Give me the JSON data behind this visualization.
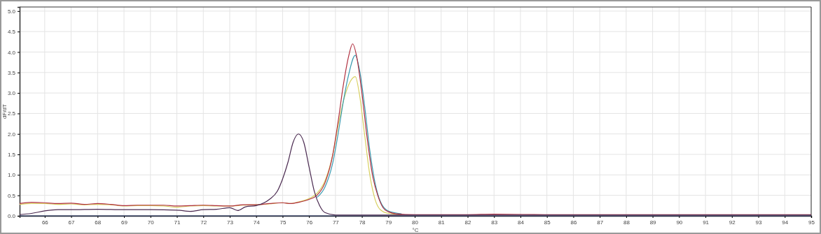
{
  "chart_data": {
    "type": "line",
    "xlabel": "°C",
    "ylabel": "dF/dT",
    "xlim": [
      65.05,
      95
    ],
    "xticks": [
      66,
      67,
      68,
      69,
      70,
      71,
      72,
      73,
      74,
      75,
      76,
      77,
      78,
      79,
      80,
      81,
      82,
      83,
      84,
      85,
      86,
      87,
      88,
      89,
      90,
      91,
      92,
      93,
      94,
      95
    ],
    "ylim": [
      0,
      5.1
    ],
    "yticks": [
      {
        "value": 0,
        "label": "0.0"
      },
      {
        "value": 0.5,
        "label": "0.5"
      },
      {
        "value": 1,
        "label": "1.0"
      },
      {
        "value": 1.5,
        "label": "1.5"
      },
      {
        "value": 2,
        "label": "2.0"
      },
      {
        "value": 2.5,
        "label": "2.5"
      },
      {
        "value": 3,
        "label": "3.0"
      },
      {
        "value": 3.5,
        "label": "3.5"
      },
      {
        "value": 4,
        "label": "4.0"
      },
      {
        "value": 4.5,
        "label": "4.5"
      },
      {
        "value": 5,
        "label": "5.0"
      }
    ],
    "grid": true,
    "marker": "none",
    "line_style": "solid",
    "series": [
      {
        "color": "#203060",
        "x": [
          65.05,
          70,
          75,
          80,
          85,
          90,
          95
        ],
        "values": [
          0,
          0,
          0,
          0,
          0,
          0,
          0
        ]
      },
      {
        "color": "#d8d060",
        "x": [
          65.05,
          65.5,
          66,
          66.5,
          67,
          67.5,
          68,
          68.5,
          69,
          69.5,
          70,
          70.5,
          71,
          71.5,
          72,
          72.5,
          73,
          73.5,
          74,
          74.5,
          75,
          75.3,
          75.6,
          76,
          76.3,
          76.6,
          76.9,
          77.1,
          77.3,
          77.5,
          77.75,
          77.9,
          78.1,
          78.3,
          78.5,
          78.7,
          79,
          79.5
        ],
        "values": [
          0.28,
          0.3,
          0.3,
          0.28,
          0.29,
          0.27,
          0.28,
          0.27,
          0.24,
          0.25,
          0.25,
          0.24,
          0.21,
          0.24,
          0.25,
          0.24,
          0.24,
          0.26,
          0.27,
          0.29,
          0.32,
          0.3,
          0.34,
          0.42,
          0.55,
          0.85,
          1.5,
          2.2,
          2.8,
          3.2,
          3.4,
          3.0,
          2.0,
          1.0,
          0.4,
          0.15,
          0.06,
          0.03
        ]
      },
      {
        "color": "#3a9ab0",
        "x": [
          76.3,
          76.6,
          76.9,
          77.1,
          77.3,
          77.5,
          77.75,
          77.9,
          78.1,
          78.3,
          78.5,
          78.7,
          79,
          79.5
        ],
        "values": [
          0.45,
          0.7,
          1.3,
          2.0,
          2.8,
          3.45,
          3.92,
          3.6,
          2.7,
          1.6,
          0.8,
          0.35,
          0.12,
          0.05
        ]
      },
      {
        "color": "#b03040",
        "x": [
          65.05,
          65.5,
          66,
          66.5,
          67,
          67.5,
          68,
          68.5,
          69,
          69.5,
          70,
          70.5,
          71,
          71.5,
          72,
          72.5,
          73,
          73.5,
          74,
          74.5,
          75,
          75.3,
          75.6,
          76,
          76.3,
          76.6,
          76.9,
          77.1,
          77.3,
          77.5,
          77.65,
          77.8,
          78,
          78.2,
          78.4,
          78.6,
          78.8,
          79,
          79.3,
          80,
          82,
          83,
          85,
          95
        ],
        "values": [
          0.3,
          0.33,
          0.32,
          0.3,
          0.31,
          0.28,
          0.3,
          0.28,
          0.25,
          0.26,
          0.26,
          0.26,
          0.24,
          0.25,
          0.26,
          0.25,
          0.24,
          0.27,
          0.27,
          0.3,
          0.32,
          0.3,
          0.33,
          0.4,
          0.5,
          0.8,
          1.5,
          2.3,
          3.2,
          3.9,
          4.2,
          3.9,
          3.0,
          1.9,
          1.0,
          0.5,
          0.2,
          0.1,
          0.05,
          0.03,
          0.03,
          0.04,
          0.03,
          0.03
        ]
      },
      {
        "color": "#4a2a50",
        "x": [
          65.05,
          65.5,
          66,
          66.5,
          67,
          68,
          69,
          70,
          71,
          71.5,
          72,
          72.5,
          73,
          73.3,
          73.6,
          74,
          74.5,
          74.8,
          75,
          75.2,
          75.4,
          75.6,
          75.8,
          76,
          76.2,
          76.4,
          76.6,
          77,
          80,
          95
        ],
        "values": [
          0.03,
          0.06,
          0.12,
          0.15,
          0.15,
          0.16,
          0.15,
          0.15,
          0.14,
          0.11,
          0.15,
          0.16,
          0.2,
          0.13,
          0.22,
          0.25,
          0.4,
          0.6,
          0.9,
          1.3,
          1.8,
          2.0,
          1.8,
          1.2,
          0.6,
          0.25,
          0.08,
          0.02,
          0.02,
          0.02
        ]
      }
    ]
  }
}
